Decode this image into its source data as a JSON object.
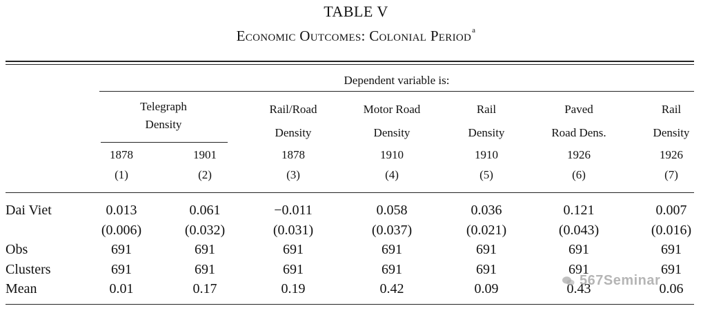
{
  "title": "TABLE V",
  "subtitle": "Economic Outcomes: Colonial Period",
  "subtitle_note": "a",
  "dep_var_label": "Dependent variable is:",
  "columns": [
    {
      "line1": "Telegraph",
      "line2": "Density",
      "year": "1878",
      "num": "(1)"
    },
    {
      "line1": "",
      "line2": "",
      "year": "1901",
      "num": "(2)"
    },
    {
      "line1": "Rail/Road",
      "line2": "Density",
      "year": "1878",
      "num": "(3)"
    },
    {
      "line1": "Motor Road",
      "line2": "Density",
      "year": "1910",
      "num": "(4)"
    },
    {
      "line1": "Rail",
      "line2": "Density",
      "year": "1910",
      "num": "(5)"
    },
    {
      "line1": "Paved",
      "line2": "Road Dens.",
      "year": "1926",
      "num": "(6)"
    },
    {
      "line1": "Rail",
      "line2": "Density",
      "year": "1926",
      "num": "(7)"
    }
  ],
  "rows": [
    {
      "label": "Dai Viet",
      "values": [
        "0.013",
        "0.061",
        "−0.011",
        "0.058",
        "0.036",
        "0.121",
        "0.007"
      ]
    },
    {
      "label": "",
      "values": [
        "(0.006)",
        "(0.032)",
        "(0.031)",
        "(0.037)",
        "(0.021)",
        "(0.043)",
        "(0.016)"
      ]
    },
    {
      "label": "Obs",
      "values": [
        "691",
        "691",
        "691",
        "691",
        "691",
        "691",
        "691"
      ]
    },
    {
      "label": "Clusters",
      "values": [
        "691",
        "691",
        "691",
        "691",
        "691",
        "691",
        "691"
      ]
    },
    {
      "label": "Mean",
      "values": [
        "0.01",
        "0.17",
        "0.19",
        "0.42",
        "0.09",
        "0.43",
        "0.06"
      ]
    }
  ],
  "watermark": "567Seminar"
}
